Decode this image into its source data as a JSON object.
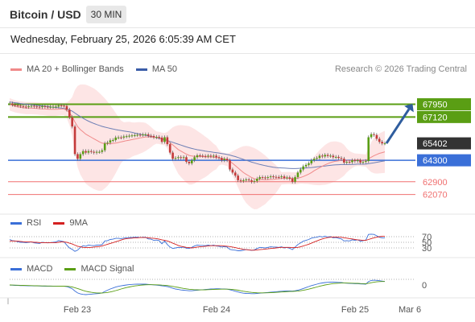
{
  "header": {
    "title": "Bitcoin / USD",
    "interval": "30 MIN"
  },
  "datetime": "Wednesday, February 25, 2026 6:05:39 AM CET",
  "legend": [
    {
      "label": "MA 20 + Bollinger Bands",
      "color": "#f08a8a"
    },
    {
      "label": "MA 50",
      "color": "#3a5da8"
    }
  ],
  "copyright": "Research © 2026 Trading Central",
  "colors": {
    "resistance": "#5a9e14",
    "support": "#3a6fd8",
    "minor_support": "#f07070",
    "current": "#333333",
    "bollinger": "#fde0e0",
    "ma20": "#f08a8a",
    "ma50": "#6d7fb5",
    "arrow": "#2f5d9e",
    "candle_up": "#5a9e14",
    "candle_down": "#c43a3a"
  },
  "chart_data": [
    {
      "type": "candlestick",
      "title": "Bitcoin / USD",
      "interval": "30 MIN",
      "ylim": [
        61000,
        69500
      ],
      "x_ticks": [
        "Feb 23",
        "Feb 24",
        "Feb 25",
        "Mar 6"
      ],
      "price_levels": [
        {
          "value": 67950,
          "label": "67950",
          "kind": "resistance"
        },
        {
          "value": 67120,
          "label": "67120",
          "kind": "resistance"
        },
        {
          "value": 65402,
          "label": "65402",
          "kind": "current"
        },
        {
          "value": 64300,
          "label": "64300",
          "kind": "support"
        },
        {
          "value": 62900,
          "label": "62900",
          "kind": "minor-support"
        },
        {
          "value": 62070,
          "label": "62070",
          "kind": "minor-support"
        }
      ],
      "close_series": [
        68000,
        67920,
        67890,
        67860,
        67830,
        67800,
        67780,
        67820,
        67850,
        67810,
        67790,
        67760,
        67820,
        67790,
        67770,
        67780,
        67790,
        67800,
        67880,
        67860,
        67840,
        67600,
        67100,
        66500,
        64700,
        64400,
        64700,
        64900,
        64800,
        64900,
        64850,
        64800,
        64850,
        64850,
        64950,
        65400,
        65450,
        65600,
        65620,
        65780,
        65790,
        65780,
        65850,
        65870,
        65900,
        65920,
        65940,
        65960,
        65950,
        65980,
        65990,
        65900,
        65880,
        65800,
        65820,
        65780,
        65500,
        65800,
        65350,
        64800,
        64400,
        64450,
        64500,
        64450,
        64500,
        64200,
        64100,
        64300,
        64500,
        64620,
        64600,
        64580,
        64550,
        64600,
        64550,
        64600,
        64500,
        64450,
        64300,
        64400,
        64300,
        63700,
        63500,
        63300,
        63000,
        62950,
        63000,
        63050,
        63000,
        62900,
        62950,
        63100,
        63200,
        63180,
        63150,
        63200,
        63250,
        63220,
        63210,
        63200,
        63250,
        63150,
        63180,
        63100,
        62900,
        63200,
        63500,
        63700,
        63900,
        64000,
        64100,
        64300,
        64400,
        64450,
        64600,
        64550,
        64650,
        64580,
        64600,
        64500,
        64520,
        64450,
        64400,
        64150,
        64200,
        64180,
        64300,
        64250,
        64300,
        64150,
        64200,
        64250,
        65800,
        66000,
        65950,
        65700,
        65500,
        65400,
        65402
      ],
      "ma20_series": [
        67950,
        67880,
        67820,
        67780,
        67750,
        67720,
        67700,
        67700,
        67700,
        67690,
        67680,
        67660,
        67650,
        67640,
        67630,
        67620,
        67620,
        67620,
        67630,
        67640,
        67640,
        67560,
        67400,
        67150,
        66800,
        66500,
        66300,
        66150,
        66000,
        65900,
        65800,
        65700,
        65600,
        65500,
        65420,
        65400,
        65380,
        65380,
        65400,
        65420,
        65460,
        65500,
        65540,
        65580,
        65610,
        65650,
        65680,
        65720,
        65760,
        65790,
        65820,
        65820,
        65810,
        65800,
        65780,
        65760,
        65700,
        65680,
        65600,
        65450,
        65300,
        65150,
        65000,
        64900,
        64800,
        64700,
        64620,
        64580,
        64560,
        64560,
        64550,
        64540,
        64520,
        64520,
        64520,
        64500,
        64480,
        64460,
        64420,
        64380,
        64330,
        64230,
        64100,
        63950,
        63800,
        63650,
        63500,
        63380,
        63280,
        63180,
        63100,
        63060,
        63050,
        63040,
        63030,
        63040,
        63050,
        63060,
        63080,
        63100,
        63120,
        63130,
        63140,
        63140,
        63120,
        63120,
        63140,
        63180,
        63240,
        63320,
        63400,
        63500,
        63620,
        63720,
        63820,
        63910,
        64000,
        64080,
        64150,
        64200,
        64240,
        64270,
        64300,
        64300,
        64290,
        64280,
        64300,
        64320,
        64330,
        64320,
        64300,
        64280,
        64400,
        64500,
        64600,
        64680,
        64750,
        64800,
        64850
      ],
      "ma50_series": [
        68100,
        68080,
        68050,
        68030,
        68000,
        67980,
        67960,
        67940,
        67920,
        67900,
        67880,
        67860,
        67840,
        67820,
        67800,
        67780,
        67760,
        67740,
        67720,
        67700,
        67680,
        67640,
        67580,
        67500,
        67380,
        67260,
        67150,
        67040,
        66940,
        66850,
        66770,
        66700,
        66630,
        66570,
        66510,
        66460,
        66420,
        66380,
        66340,
        66300,
        66270,
        66240,
        66210,
        66180,
        66150,
        66120,
        66080,
        66040,
        66000,
        65960,
        65930,
        65890,
        65850,
        65810,
        65770,
        65730,
        65680,
        65640,
        65590,
        65530,
        65470,
        65410,
        65350,
        65290,
        65230,
        65170,
        65120,
        65070,
        65030,
        64990,
        64960,
        64930,
        64900,
        64870,
        64850,
        64820,
        64800,
        64770,
        64740,
        64710,
        64680,
        64640,
        64590,
        64540,
        64480,
        64420,
        64360,
        64300,
        64240,
        64180,
        64130,
        64080,
        64030,
        63990,
        63950,
        63910,
        63880,
        63850,
        63830,
        63810,
        63800,
        63790,
        63780,
        63770,
        63760,
        63760,
        63770,
        63780,
        63790,
        63800,
        63810,
        63830,
        63850,
        63870,
        63890,
        63910,
        63930,
        63950,
        63970,
        63990,
        64000,
        64010,
        64020,
        64020,
        64020,
        64020,
        64030,
        64040,
        64050,
        64050,
        64050,
        64050,
        64080,
        64110,
        64140,
        64170,
        64200,
        64230,
        64260
      ],
      "projection": {
        "from": 65402,
        "to": 67950
      }
    },
    {
      "type": "line",
      "title": "RSI",
      "series": [
        {
          "name": "RSI",
          "color": "#3a6fd8",
          "values": [
            60,
            56,
            55,
            52,
            50,
            50,
            49,
            50,
            51,
            48,
            47,
            46,
            50,
            49,
            48,
            49,
            50,
            51,
            56,
            54,
            52,
            40,
            30,
            25,
            18,
            22,
            32,
            38,
            36,
            40,
            39,
            38,
            40,
            40,
            42,
            55,
            56,
            60,
            61,
            64,
            64,
            63,
            65,
            66,
            67,
            67,
            68,
            68,
            67,
            68,
            68,
            62,
            61,
            57,
            58,
            56,
            45,
            55,
            42,
            33,
            28,
            30,
            32,
            31,
            33,
            29,
            28,
            32,
            37,
            40,
            39,
            39,
            38,
            40,
            38,
            40,
            37,
            36,
            33,
            35,
            33,
            25,
            23,
            22,
            20,
            20,
            22,
            24,
            23,
            21,
            23,
            28,
            32,
            31,
            30,
            32,
            34,
            33,
            33,
            32,
            34,
            30,
            32,
            29,
            24,
            33,
            42,
            48,
            54,
            57,
            60,
            65,
            67,
            68,
            71,
            69,
            72,
            69,
            70,
            66,
            67,
            64,
            62,
            55,
            56,
            55,
            59,
            57,
            59,
            54,
            56,
            58,
            78,
            79,
            78,
            73,
            68,
            66,
            66
          ]
        },
        {
          "name": "9MA",
          "color": "#d42020",
          "values": [
            55,
            55,
            54,
            54,
            53,
            52,
            51,
            51,
            51,
            50,
            50,
            49,
            49,
            49,
            49,
            49,
            49,
            49,
            50,
            51,
            51,
            50,
            47,
            44,
            40,
            36,
            34,
            32,
            31,
            31,
            32,
            33,
            34,
            35,
            37,
            40,
            43,
            46,
            49,
            52,
            55,
            58,
            61,
            63,
            64,
            65,
            66,
            66,
            67,
            67,
            67,
            66,
            65,
            64,
            63,
            61,
            59,
            57,
            55,
            51,
            47,
            43,
            39,
            36,
            34,
            32,
            31,
            30,
            31,
            33,
            34,
            35,
            36,
            37,
            38,
            38,
            38,
            38,
            38,
            37,
            36,
            35,
            33,
            31,
            29,
            27,
            25,
            24,
            23,
            22,
            22,
            23,
            24,
            25,
            26,
            27,
            28,
            29,
            30,
            31,
            32,
            32,
            32,
            32,
            31,
            31,
            32,
            34,
            37,
            40,
            43,
            47,
            51,
            55,
            59,
            62,
            65,
            67,
            68,
            69,
            69,
            68,
            68,
            66,
            65,
            63,
            62,
            60,
            59,
            58,
            57,
            57,
            60,
            63,
            66,
            68,
            70,
            71,
            71
          ]
        }
      ],
      "levels": [
        70,
        50,
        30
      ],
      "ylim": [
        0,
        100
      ]
    },
    {
      "type": "line",
      "title": "MACD",
      "series": [
        {
          "name": "MACD",
          "color": "#3a6fd8",
          "values": [
            60,
            55,
            50,
            45,
            40,
            38,
            35,
            33,
            31,
            28,
            25,
            22,
            20,
            18,
            16,
            15,
            14,
            13,
            14,
            14,
            13,
            0,
            -40,
            -90,
            -180,
            -260,
            -300,
            -320,
            -330,
            -320,
            -310,
            -300,
            -290,
            -280,
            -260,
            -200,
            -150,
            -100,
            -60,
            -20,
            10,
            30,
            50,
            65,
            80,
            90,
            95,
            100,
            100,
            100,
            98,
            90,
            80,
            70,
            60,
            50,
            30,
            20,
            0,
            -30,
            -70,
            -100,
            -120,
            -140,
            -150,
            -160,
            -170,
            -170,
            -160,
            -150,
            -140,
            -130,
            -120,
            -110,
            -100,
            -95,
            -90,
            -90,
            -95,
            -100,
            -105,
            -130,
            -160,
            -190,
            -220,
            -250,
            -270,
            -280,
            -285,
            -290,
            -290,
            -280,
            -270,
            -260,
            -250,
            -240,
            -230,
            -220,
            -210,
            -200,
            -190,
            -185,
            -180,
            -180,
            -185,
            -170,
            -150,
            -120,
            -80,
            -40,
            0,
            40,
            70,
            100,
            130,
            150,
            165,
            175,
            180,
            180,
            178,
            172,
            165,
            150,
            140,
            130,
            125,
            120,
            118,
            110,
            105,
            100,
            200,
            250,
            260,
            255,
            240,
            225,
            210
          ]
        },
        {
          "name": "MACD Signal",
          "color": "#5a9e14",
          "values": [
            65,
            62,
            58,
            55,
            52,
            48,
            45,
            42,
            40,
            37,
            34,
            31,
            28,
            26,
            24,
            22,
            20,
            19,
            18,
            17,
            16,
            12,
            2,
            -15,
            -45,
            -80,
            -120,
            -160,
            -190,
            -215,
            -235,
            -250,
            -260,
            -265,
            -265,
            -255,
            -240,
            -220,
            -195,
            -165,
            -135,
            -100,
            -70,
            -40,
            -15,
            5,
            25,
            40,
            55,
            65,
            72,
            76,
            77,
            76,
            73,
            68,
            61,
            53,
            42,
            27,
            8,
            -12,
            -34,
            -55,
            -75,
            -92,
            -108,
            -120,
            -128,
            -133,
            -135,
            -134,
            -131,
            -127,
            -122,
            -117,
            -112,
            -108,
            -105,
            -104,
            -104,
            -109,
            -119,
            -133,
            -150,
            -170,
            -190,
            -208,
            -224,
            -237,
            -248,
            -254,
            -257,
            -258,
            -256,
            -253,
            -248,
            -243,
            -236,
            -229,
            -221,
            -214,
            -207,
            -202,
            -198,
            -192,
            -184,
            -171,
            -153,
            -130,
            -104,
            -75,
            -46,
            -17,
            13,
            40,
            65,
            87,
            106,
            121,
            132,
            140,
            145,
            146,
            145,
            142,
            139,
            135,
            131,
            127,
            122,
            118,
            135,
            158,
            179,
            194,
            203,
            208,
            209
          ]
        }
      ],
      "levels": [
        0
      ]
    }
  ],
  "sub_legends": {
    "rsi": [
      {
        "label": "RSI",
        "color": "#3a6fd8"
      },
      {
        "label": "9MA",
        "color": "#d42020"
      }
    ],
    "macd": [
      {
        "label": "MACD",
        "color": "#3a6fd8"
      },
      {
        "label": "MACD Signal",
        "color": "#5a9e14"
      }
    ]
  },
  "rsi_level_labels": [
    "70",
    "50",
    "30"
  ],
  "macd_level_label": "0"
}
